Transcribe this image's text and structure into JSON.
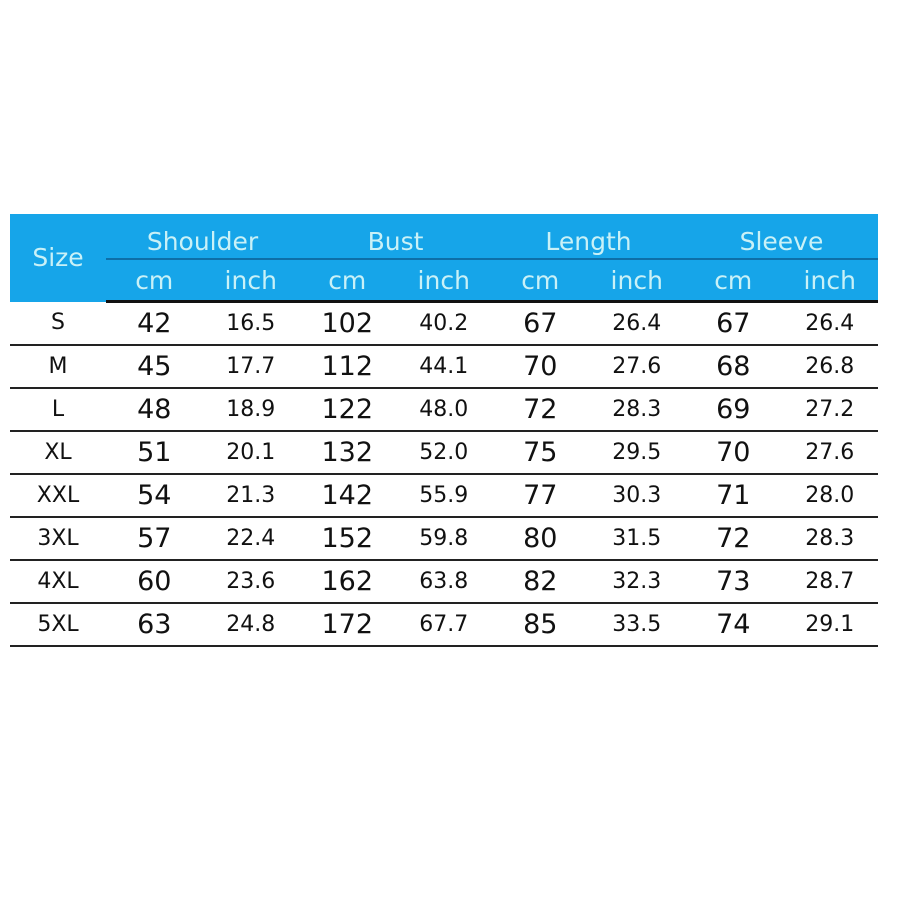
{
  "header": {
    "size_label": "Size",
    "groups": [
      "Shoulder",
      "Bust",
      "Length",
      "Sleeve"
    ],
    "units": [
      "cm",
      "inch"
    ]
  },
  "colors": {
    "header_bg": "#16a5e9",
    "header_text": "#c9f1f7"
  },
  "rows": [
    {
      "size": "S",
      "values": [
        "42",
        "16.5",
        "102",
        "40.2",
        "67",
        "26.4",
        "67",
        "26.4"
      ]
    },
    {
      "size": "M",
      "values": [
        "45",
        "17.7",
        "112",
        "44.1",
        "70",
        "27.6",
        "68",
        "26.8"
      ]
    },
    {
      "size": "L",
      "values": [
        "48",
        "18.9",
        "122",
        "48.0",
        "72",
        "28.3",
        "69",
        "27.2"
      ]
    },
    {
      "size": "XL",
      "values": [
        "51",
        "20.1",
        "132",
        "52.0",
        "75",
        "29.5",
        "70",
        "27.6"
      ]
    },
    {
      "size": "XXL",
      "values": [
        "54",
        "21.3",
        "142",
        "55.9",
        "77",
        "30.3",
        "71",
        "28.0"
      ]
    },
    {
      "size": "3XL",
      "values": [
        "57",
        "22.4",
        "152",
        "59.8",
        "80",
        "31.5",
        "72",
        "28.3"
      ]
    },
    {
      "size": "4XL",
      "values": [
        "60",
        "23.6",
        "162",
        "63.8",
        "82",
        "32.3",
        "73",
        "28.7"
      ]
    },
    {
      "size": "5XL",
      "values": [
        "63",
        "24.8",
        "172",
        "67.7",
        "85",
        "33.5",
        "74",
        "29.1"
      ]
    }
  ]
}
